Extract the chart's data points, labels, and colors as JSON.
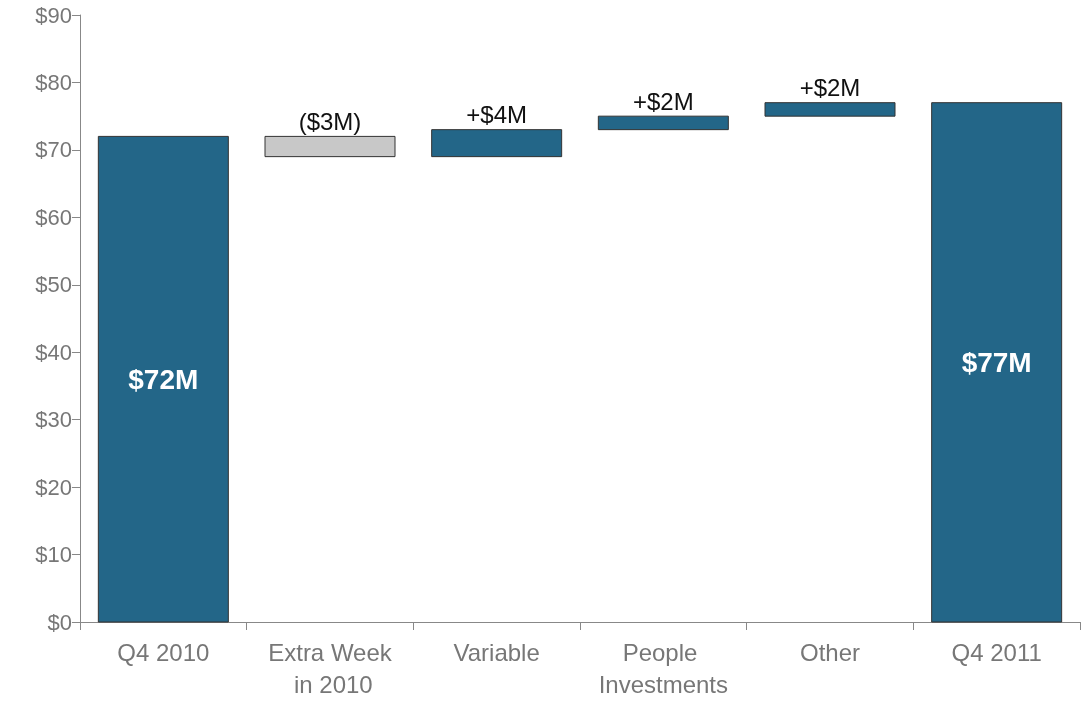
{
  "chart_data": {
    "type": "bar",
    "categories": [
      "Q4 2010",
      "Extra Week in 2010",
      "Variable",
      "People Investments",
      "Other",
      "Q4 2011"
    ],
    "values": [
      72,
      -3,
      4,
      2,
      2,
      77
    ],
    "base": [
      0,
      72,
      69,
      73,
      75,
      0
    ],
    "colors": [
      "#236688",
      "#c8c8c8",
      "#236688",
      "#236688",
      "#236688",
      "#236688"
    ],
    "value_labels": [
      "$72M",
      "($3M)",
      "+$4M",
      "+$2M",
      "+$2M",
      "$77M"
    ],
    "ylim": [
      0,
      90
    ],
    "yticks": [
      {
        "value": 0,
        "label": "$0"
      },
      {
        "value": 10,
        "label": "$10"
      },
      {
        "value": 20,
        "label": "$20"
      },
      {
        "value": 30,
        "label": "$30"
      },
      {
        "value": 40,
        "label": "$40"
      },
      {
        "value": 50,
        "label": "$50"
      },
      {
        "value": 60,
        "label": "$60"
      },
      {
        "value": 70,
        "label": "$70"
      },
      {
        "value": 80,
        "label": "$80"
      },
      {
        "value": 90,
        "label": "$90"
      }
    ],
    "grid": false
  }
}
